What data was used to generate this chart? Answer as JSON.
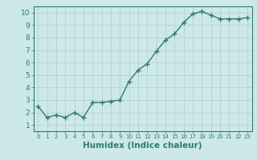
{
  "x": [
    0,
    1,
    2,
    3,
    4,
    5,
    6,
    7,
    8,
    9,
    10,
    11,
    12,
    13,
    14,
    15,
    16,
    17,
    18,
    19,
    20,
    21,
    22,
    23
  ],
  "y": [
    2.5,
    1.6,
    1.8,
    1.6,
    2.0,
    1.6,
    2.8,
    2.8,
    2.9,
    3.0,
    4.5,
    5.4,
    5.9,
    6.9,
    7.8,
    8.3,
    9.2,
    9.9,
    10.1,
    9.8,
    9.5,
    9.5,
    9.5,
    9.6
  ],
  "line_color": "#2e7d6e",
  "marker": "+",
  "marker_size": 4,
  "linewidth": 1.0,
  "xlabel": "Humidex (Indice chaleur)",
  "xlim": [
    -0.5,
    23.5
  ],
  "ylim": [
    0.5,
    10.5
  ],
  "yticks": [
    1,
    2,
    3,
    4,
    5,
    6,
    7,
    8,
    9,
    10
  ],
  "xticks": [
    0,
    1,
    2,
    3,
    4,
    5,
    6,
    7,
    8,
    9,
    10,
    11,
    12,
    13,
    14,
    15,
    16,
    17,
    18,
    19,
    20,
    21,
    22,
    23
  ],
  "bg_color": "#cde8e8",
  "grid_color": "#b0cccc",
  "line_and_text_color": "#2e7d6e",
  "xlabel_fontsize": 7.5,
  "tick_fontsize": 6.0
}
